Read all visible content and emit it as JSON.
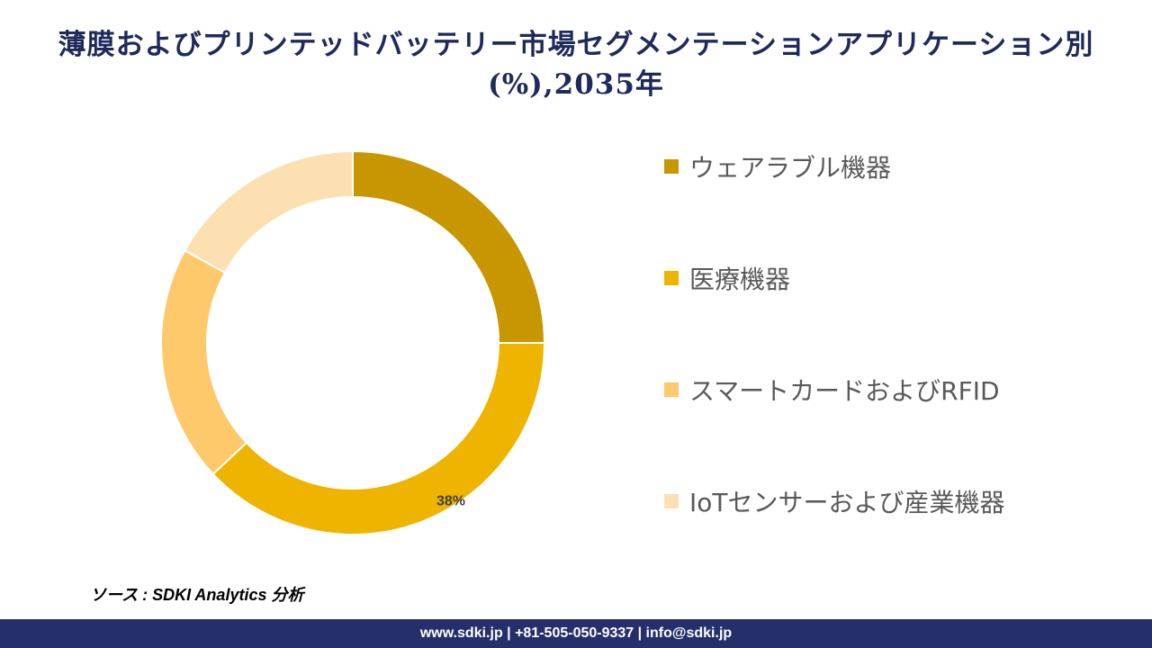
{
  "title": "薄膜およびプリンテッドバッテリー市場セグメンテーションアプリケーション別(%),2035年",
  "chart_data": {
    "type": "pie",
    "variant": "donut",
    "title": "薄膜およびプリンテッドバッテリー市場セグメンテーションアプリケーション別(%),2035年",
    "categories": [
      "ウェアラブル機器",
      "医療機器",
      "スマートカードおよびRFID",
      "IoTセンサーおよび産業機器"
    ],
    "values": [
      25,
      38,
      20,
      17
    ],
    "colors": [
      "#c89700",
      "#efb400",
      "#fdc96b",
      "#fde0b2"
    ],
    "data_labels": [
      null,
      "38%",
      null,
      null
    ],
    "legend_position": "right"
  },
  "source": "ソース : SDKI Analytics 分析",
  "footer": "www.sdki.jp | +81-505-050-9337 | info@sdki.jp"
}
